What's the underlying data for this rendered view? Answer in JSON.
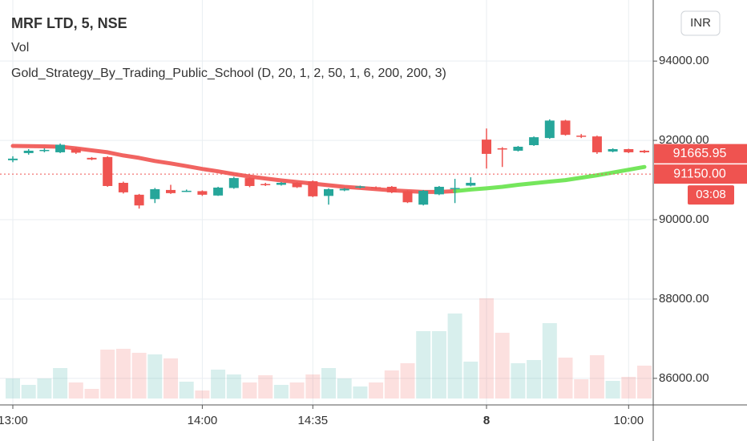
{
  "chart_data": {
    "type": "candlestick",
    "title": "MRF LTD, 5, NSE",
    "legend_items": [
      "Vol",
      "Gold_Strategy_By_Trading_Public_School (D, 20, 1, 2, 50, 1, 6, 200, 200, 3)"
    ],
    "currency": "INR",
    "categories": [
      "13:00",
      null,
      null,
      null,
      null,
      null,
      null,
      null,
      null,
      null,
      null,
      null,
      "14:00",
      null,
      null,
      null,
      null,
      null,
      null,
      "14:35",
      null,
      null,
      null,
      null,
      null,
      null,
      null,
      null,
      null,
      null,
      "8",
      null,
      null,
      null,
      null,
      null,
      null,
      null,
      null,
      "10:00",
      null
    ],
    "open": [
      91500,
      91680,
      91730,
      91700,
      91790,
      91560,
      91580,
      90930,
      90630,
      90520,
      90750,
      90710,
      90720,
      90610,
      90800,
      91050,
      90900,
      90880,
      90930,
      90970,
      90600,
      90740,
      90810,
      90820,
      90830,
      90720,
      90380,
      90640,
      90780,
      90860,
      92020,
      91800,
      91740,
      91880,
      92060,
      92500,
      92120,
      92100,
      91720,
      91780,
      91740
    ],
    "close": [
      91540,
      91740,
      91760,
      91890,
      91690,
      91520,
      90850,
      90690,
      90360,
      90770,
      90670,
      90730,
      90630,
      90810,
      91050,
      90850,
      90870,
      90930,
      90820,
      90590,
      90770,
      90780,
      90840,
      90790,
      90690,
      90440,
      90730,
      90830,
      90800,
      90930,
      91660,
      91770,
      91840,
      92080,
      92500,
      92140,
      92100,
      91700,
      91780,
      91700,
      91700
    ],
    "high": [
      91600,
      91780,
      91800,
      91920,
      91820,
      91580,
      91600,
      90960,
      90650,
      90800,
      90880,
      90760,
      90740,
      90830,
      91080,
      91070,
      90930,
      90950,
      90950,
      90990,
      90790,
      90800,
      90860,
      90840,
      90850,
      90740,
      90750,
      90850,
      91030,
      91070,
      92300,
      91830,
      91860,
      92100,
      92530,
      92520,
      92160,
      92120,
      91800,
      91790,
      91760
    ],
    "low": [
      91450,
      91640,
      91700,
      91680,
      91660,
      91500,
      90830,
      90660,
      90280,
      90420,
      90650,
      90700,
      90600,
      90600,
      90780,
      90820,
      90850,
      90860,
      90800,
      90570,
      90380,
      90720,
      90790,
      90770,
      90670,
      90420,
      90360,
      90620,
      90420,
      90840,
      91290,
      91330,
      91720,
      91860,
      92040,
      92120,
      92060,
      91660,
      91700,
      91680,
      91680
    ],
    "volume": [
      25,
      17,
      25,
      38,
      20,
      12,
      61,
      62,
      57,
      55,
      50,
      21,
      10,
      36,
      30,
      20,
      29,
      17,
      20,
      30,
      38,
      25,
      15,
      20,
      35,
      44,
      84,
      84,
      106,
      46,
      125,
      82,
      44,
      48,
      94,
      51,
      24,
      54,
      22,
      27,
      41
    ],
    "up_color": "#26a69a",
    "down_color": "#ef5350",
    "moving_average": [
      {
        "color": "#ef5350",
        "values": [
          91860,
          91855,
          91850,
          91840,
          91800,
          91750,
          91700,
          91620,
          91560,
          91480,
          91420,
          91350,
          91280,
          91220,
          91150,
          91090,
          91040,
          90990,
          90950,
          90910,
          90870,
          90830,
          90800,
          90770,
          90740,
          90720,
          90700,
          90700,
          90720,
          null,
          null,
          null,
          null,
          null,
          null,
          null,
          null,
          null,
          null,
          null,
          null
        ]
      },
      {
        "color": "#66e34a",
        "values": [
          null,
          null,
          null,
          null,
          null,
          null,
          null,
          null,
          null,
          null,
          null,
          null,
          null,
          null,
          null,
          null,
          null,
          null,
          null,
          null,
          null,
          null,
          null,
          null,
          null,
          null,
          null,
          null,
          90720,
          90760,
          90790,
          90830,
          90880,
          90920,
          90960,
          91000,
          91060,
          91120,
          91190,
          91260,
          91330
        ]
      }
    ],
    "ylim": [
      85330,
      95540
    ],
    "yticks": [
      {
        "value": 86000,
        "label": "86000.00"
      },
      {
        "value": 88000,
        "label": "88000.00"
      },
      {
        "value": 90000,
        "label": "90000.00"
      },
      {
        "value": 92000,
        "label": "92000.00"
      },
      {
        "value": 94000,
        "label": "94000.00"
      }
    ],
    "grid": true,
    "price_labels": [
      {
        "value": 91665.95,
        "label": "91665.95"
      },
      {
        "value": 91150,
        "label": "91150.00",
        "countdown": "03:08"
      }
    ]
  }
}
